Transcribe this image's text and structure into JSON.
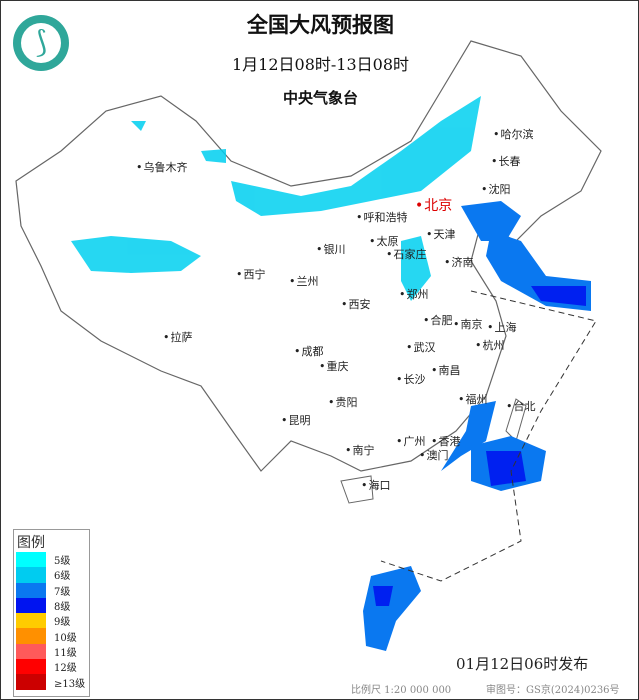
{
  "header": {
    "title": "全国大风预报图",
    "period": "1月12日08时-13日08时",
    "agency": "中央气象台"
  },
  "cities": [
    {
      "name": "乌鲁木齐"
    },
    {
      "name": "哈尔滨"
    },
    {
      "name": "长春"
    },
    {
      "name": "沈阳"
    },
    {
      "name": "呼和浩特"
    },
    {
      "name": "北京",
      "capital": true
    },
    {
      "name": "天津"
    },
    {
      "name": "银川"
    },
    {
      "name": "太原"
    },
    {
      "name": "石家庄"
    },
    {
      "name": "西宁"
    },
    {
      "name": "兰州"
    },
    {
      "name": "济南"
    },
    {
      "name": "郑州"
    },
    {
      "name": "西安"
    },
    {
      "name": "合肥"
    },
    {
      "name": "南京"
    },
    {
      "name": "上海"
    },
    {
      "name": "拉萨"
    },
    {
      "name": "成都"
    },
    {
      "name": "武汉"
    },
    {
      "name": "杭州"
    },
    {
      "name": "重庆"
    },
    {
      "name": "长沙"
    },
    {
      "name": "南昌"
    },
    {
      "name": "福州"
    },
    {
      "name": "台北"
    },
    {
      "name": "贵阳"
    },
    {
      "name": "昆明"
    },
    {
      "name": "广州"
    },
    {
      "name": "南宁"
    },
    {
      "name": "香港"
    },
    {
      "name": "澳门"
    },
    {
      "name": "海口"
    }
  ],
  "legend": {
    "title": "图例",
    "items": [
      {
        "label": "5级",
        "color": "#00ffff"
      },
      {
        "label": "6级",
        "color": "#00ccf0"
      },
      {
        "label": "7级",
        "color": "#0a78f0"
      },
      {
        "label": "8级",
        "color": "#0014f0"
      },
      {
        "label": "9级",
        "color": "#ffcc00"
      },
      {
        "label": "10级",
        "color": "#ff9000"
      },
      {
        "label": "11级",
        "color": "#ff5a5a"
      },
      {
        "label": "12级",
        "color": "#ff0000"
      },
      {
        "label": "≥13级",
        "color": "#cc0000"
      }
    ]
  },
  "footer": {
    "published": "01月12日06时发布",
    "scale": "比例尺 1:20 000 000",
    "review_no": "审图号：GS京(2024)0236号"
  }
}
